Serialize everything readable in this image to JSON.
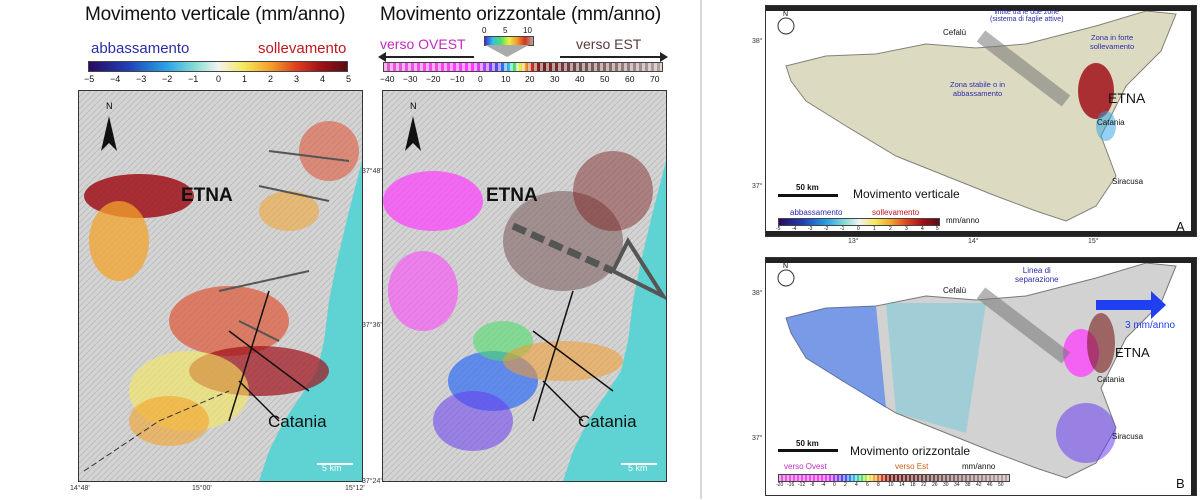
{
  "left": {
    "vertical": {
      "title": "Movimento verticale (mm/anno)",
      "down_label": "abbassamento",
      "up_label": "sollevamento",
      "ticks": [
        "−5",
        "−4",
        "−3",
        "−2",
        "−1",
        "0",
        "1",
        "2",
        "3",
        "4",
        "5"
      ],
      "volcano_label": "ETNA",
      "city_label": "Catania",
      "scale_label": "5 km",
      "lon_labels": [
        "14°48'",
        "15°00'",
        "15°12'"
      ],
      "lat_labels": [
        "37°48'",
        "37°36'",
        "37°24'"
      ]
    },
    "horizontal": {
      "title": "Movimento orizzontale (mm/anno)",
      "west_label": "verso OVEST",
      "east_label": "verso EST",
      "inset_ticks": [
        "0",
        "5",
        "10"
      ],
      "ticks": [
        "−40",
        "−30",
        "−20",
        "−10",
        "0",
        "10",
        "20",
        "30",
        "40",
        "50",
        "60",
        "70"
      ],
      "volcano_label": "ETNA",
      "city_label": "Catania",
      "scale_label": "5 km"
    }
  },
  "right": {
    "map_a": {
      "panel_letter": "A",
      "lat_labels": [
        "38°",
        "37°"
      ],
      "lon_labels": [
        "13°",
        "14°",
        "15°"
      ],
      "cefalu": "Cefalù",
      "annot_boundary": "limite tra le due zone\n(sistema di faglie attive)",
      "annot_uplift": "Zona in forte\nsollevamento",
      "annot_stable": "Zona stabile o in\nabbassamento",
      "etna": "ETNA",
      "catania": "Catania",
      "siracusa": "Siracusa",
      "scale": "50 km",
      "legend_title": "Movimento verticale",
      "legend_down": "abbassamento",
      "legend_up": "sollevamento",
      "legend_unit": "mm/anno",
      "legend_ticks": [
        "-5",
        "-4",
        "-3",
        "-2",
        "-1",
        "0",
        "1",
        "2",
        "3",
        "4",
        "5"
      ]
    },
    "map_b": {
      "panel_letter": "B",
      "lat_labels": [
        "38°",
        "37°"
      ],
      "cefalu": "Cefalù",
      "annot_sep": "Linea di\nseparazione",
      "arrow_label": "3 mm/anno",
      "etna": "ETNA",
      "catania": "Catania",
      "siracusa": "Siracusa",
      "scale": "50 km",
      "legend_title": "Movimento orizzontale",
      "legend_west": "verso Ovest",
      "legend_east": "verso Est",
      "legend_unit": "mm/anno",
      "legend_ticks": [
        "-20",
        "-16",
        "-12",
        "-8",
        "-4",
        "0",
        "2",
        "4",
        "6",
        "8",
        "10",
        "14",
        "18",
        "22",
        "26",
        "30",
        "34",
        "38",
        "42",
        "46",
        "50"
      ]
    }
  },
  "colors": {
    "vertical_scale": [
      "#2b0a5e",
      "#1f3fb5",
      "#2aa2e6",
      "#8fe0d6",
      "#f2f2f2",
      "#f6e85a",
      "#f3a32b",
      "#e0411d",
      "#a0101a",
      "#5a0c12"
    ],
    "horizontal_scale": [
      "#e45ad8",
      "#ff3cff",
      "#6a3cf0",
      "#2f6cf5",
      "#2ec4e0",
      "#4ede6a",
      "#eaf045",
      "#f39a2b",
      "#d2341b",
      "#7a1a1a",
      "#6f4a4a",
      "#b8a3a3"
    ],
    "sea": "#5fd3d3",
    "blue_text": "#2c2ca8",
    "red_text": "#c0161b",
    "magenta_text": "#c02cc0"
  }
}
